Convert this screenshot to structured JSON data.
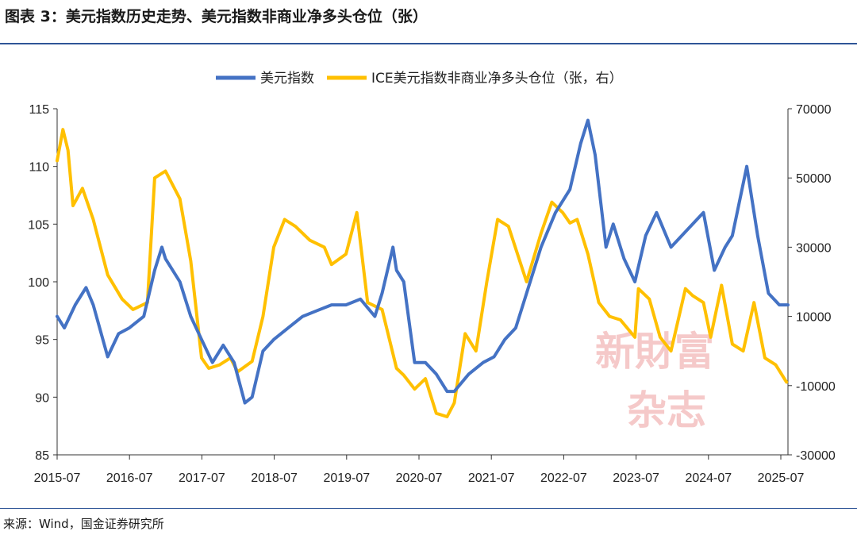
{
  "title": "图表 3：美元指数历史走势、美元指数非商业净多头仓位（张）",
  "source": "来源：Wind，国金证券研究所",
  "watermark": {
    "line1": "新財富",
    "line2": "杂志"
  },
  "colors": {
    "series1": "#4472c4",
    "series2": "#ffc000",
    "rule": "#2f5597"
  },
  "chart_data": {
    "type": "line",
    "x_tick_labels": [
      "2015-07",
      "2016-07",
      "2017-07",
      "2018-07",
      "2019-07",
      "2020-07",
      "2021-07",
      "2022-07",
      "2023-07",
      "2024-07",
      "2025-07"
    ],
    "y_left": {
      "min": 85,
      "max": 115,
      "ticks": [
        "85",
        "90",
        "95",
        "100",
        "105",
        "110",
        "115"
      ]
    },
    "y_right": {
      "min": -30000,
      "max": 70000,
      "ticks": [
        "-30000",
        "-10000",
        "10000",
        "30000",
        "50000",
        "70000"
      ]
    },
    "series": [
      {
        "name": "美元指数",
        "axis": "left",
        "x": [
          2015.5,
          2015.6,
          2015.75,
          2015.9,
          2016.0,
          2016.2,
          2016.35,
          2016.5,
          2016.7,
          2016.85,
          2016.95,
          2017.0,
          2017.2,
          2017.35,
          2017.5,
          2017.65,
          2017.8,
          2017.95,
          2018.1,
          2018.2,
          2018.35,
          2018.5,
          2018.7,
          2018.9,
          2019.1,
          2019.3,
          2019.5,
          2019.7,
          2019.9,
          2020.0,
          2020.15,
          2020.2,
          2020.3,
          2020.45,
          2020.6,
          2020.75,
          2020.9,
          2021.0,
          2021.2,
          2021.4,
          2021.55,
          2021.7,
          2021.85,
          2022.0,
          2022.2,
          2022.4,
          2022.6,
          2022.75,
          2022.85,
          2022.95,
          2023.1,
          2023.2,
          2023.35,
          2023.5,
          2023.65,
          2023.8,
          2024.0,
          2024.15,
          2024.3,
          2024.45,
          2024.6,
          2024.75,
          2024.85,
          2024.95,
          2025.05,
          2025.2,
          2025.35,
          2025.5,
          2025.62
        ],
        "values": [
          97,
          96,
          98,
          99.5,
          98,
          93.5,
          95.5,
          96,
          97,
          101,
          103,
          102,
          100,
          97,
          95,
          93,
          94.5,
          93,
          89.5,
          90,
          94,
          95,
          96,
          97,
          97.5,
          98,
          98,
          98.5,
          97,
          99,
          103,
          101,
          100,
          93,
          93,
          92,
          90.5,
          90.5,
          92,
          93,
          93.5,
          95,
          96,
          99,
          103,
          106,
          108,
          112,
          114,
          111,
          103,
          105,
          102,
          100,
          104,
          106,
          103,
          104,
          105,
          106,
          101,
          103,
          104,
          107,
          110,
          104,
          99,
          98,
          98
        ]
      },
      {
        "name": "ICE美元指数非商业净多头仓位（张，右）",
        "axis": "right",
        "x": [
          2015.5,
          2015.58,
          2015.65,
          2015.72,
          2015.85,
          2016.0,
          2016.2,
          2016.4,
          2016.55,
          2016.75,
          2016.85,
          2017.0,
          2017.2,
          2017.35,
          2017.5,
          2017.6,
          2017.75,
          2017.9,
          2018.0,
          2018.2,
          2018.35,
          2018.5,
          2018.65,
          2018.8,
          2019.0,
          2019.2,
          2019.3,
          2019.5,
          2019.65,
          2019.8,
          2020.0,
          2020.2,
          2020.3,
          2020.45,
          2020.6,
          2020.75,
          2020.9,
          2021.0,
          2021.15,
          2021.3,
          2021.45,
          2021.6,
          2021.75,
          2022.0,
          2022.2,
          2022.35,
          2022.5,
          2022.6,
          2022.7,
          2022.85,
          2023.0,
          2023.15,
          2023.3,
          2023.5,
          2023.55,
          2023.7,
          2023.85,
          2024.0,
          2024.2,
          2024.3,
          2024.45,
          2024.55,
          2024.7,
          2024.85,
          2025.0,
          2025.15,
          2025.3,
          2025.45,
          2025.6
        ],
        "values": [
          55000,
          64000,
          58000,
          42000,
          47000,
          38000,
          22000,
          15000,
          12000,
          14000,
          50000,
          52000,
          44000,
          26000,
          -2000,
          -5000,
          -4000,
          -2000,
          -6000,
          -3000,
          10000,
          30000,
          38000,
          36000,
          32000,
          30000,
          25000,
          28000,
          40000,
          14000,
          12000,
          -5000,
          -7000,
          -11000,
          -8000,
          -18000,
          -19000,
          -15000,
          5000,
          0,
          20000,
          38000,
          36000,
          20000,
          34000,
          43000,
          40000,
          37000,
          38000,
          28000,
          14000,
          10000,
          9000,
          4000,
          18000,
          15000,
          4000,
          0,
          18000,
          16000,
          14000,
          4000,
          19000,
          2000,
          0,
          14000,
          -2000,
          -4000,
          -9000
        ]
      }
    ]
  }
}
